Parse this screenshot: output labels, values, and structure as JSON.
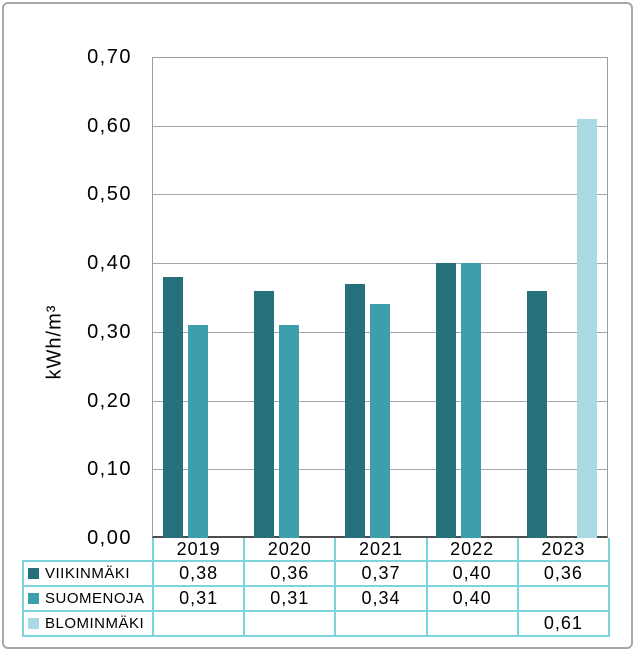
{
  "chart_data": {
    "type": "bar",
    "title": "",
    "categories": [
      "2019",
      "2020",
      "2021",
      "2022",
      "2023"
    ],
    "series": [
      {
        "name": "VIIKINMÄKI",
        "color": "#26707b",
        "values": [
          0.38,
          0.36,
          0.37,
          0.4,
          0.36
        ]
      },
      {
        "name": "SUOMENOJA",
        "color": "#3d9eac",
        "values": [
          0.31,
          0.31,
          0.34,
          0.4,
          null
        ]
      },
      {
        "name": "BLOMINMÄKI",
        "color": "#a9dae3",
        "values": [
          null,
          null,
          null,
          null,
          0.61
        ]
      }
    ],
    "xlabel": "",
    "ylabel": "kWh/m³",
    "ylim": [
      0,
      0.7
    ],
    "ytick_step": 0.1,
    "ytick_labels": [
      "0,00",
      "0,10",
      "0,20",
      "0,30",
      "0,40",
      "0,50",
      "0,60",
      "0,70"
    ],
    "grid": true,
    "gridline_color": "#a6a6a6",
    "legend_position": "data-table-left"
  },
  "data_table": {
    "header_row": [
      "2019",
      "2020",
      "2021",
      "2022",
      "2023"
    ],
    "rows": [
      {
        "label": "VIIKINMÄKI",
        "swatch_color": "#26707b",
        "cells": [
          "0,38",
          "0,36",
          "0,37",
          "0,40",
          "0,36"
        ]
      },
      {
        "label": "SUOMENOJA",
        "swatch_color": "#3d9eac",
        "cells": [
          "0,31",
          "0,31",
          "0,34",
          "0,40",
          ""
        ]
      },
      {
        "label": "BLOMINMÄKI",
        "swatch_color": "#a9dae3",
        "cells": [
          "",
          "",
          "",
          "",
          "0,61"
        ]
      }
    ],
    "border_color": "#7bd3dc"
  }
}
